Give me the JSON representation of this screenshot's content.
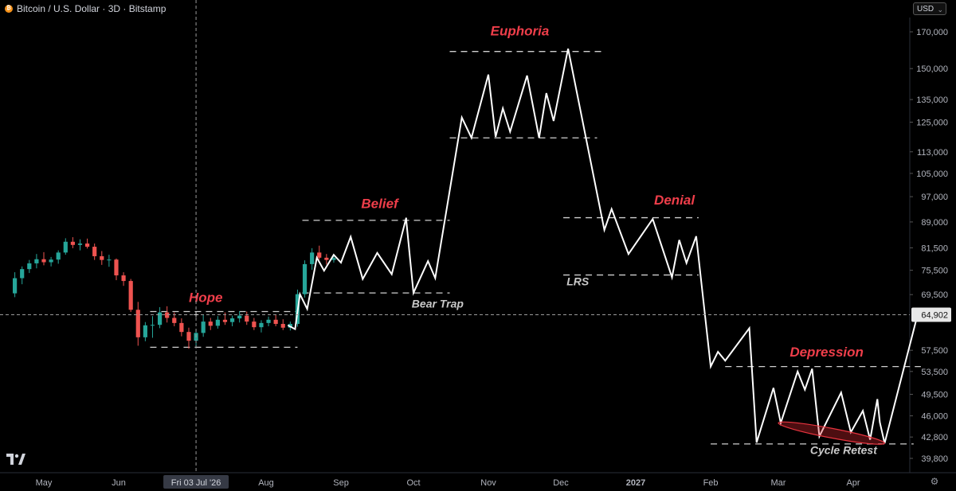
{
  "header": {
    "symbol_title": "Bitcoin / U.S. Dollar · 3D · Bitstamp",
    "currency": "USD",
    "logo_glyph": "₿"
  },
  "crosshair": {
    "date_label": "Fri 03 Jul '26",
    "price_label": "64,902"
  },
  "colors": {
    "background": "#000000",
    "up": "#26a69a",
    "down": "#ef5350",
    "path": "#ffffff",
    "phase_label": "#ef3e4a",
    "secondary_label": "#c8c8c8"
  },
  "chart_data": {
    "type": "line",
    "title": "",
    "y_scale": "log",
    "ylim": [
      38000,
      180000
    ],
    "x_range": [
      "2026-04-18",
      "2027-04-30"
    ],
    "x_ticks": [
      {
        "date": "2026-05-01",
        "label": "May"
      },
      {
        "date": "2026-06-01",
        "label": "Jun"
      },
      {
        "date": "2026-08-01",
        "label": "Aug"
      },
      {
        "date": "2026-09-01",
        "label": "Sep"
      },
      {
        "date": "2026-10-01",
        "label": "Oct"
      },
      {
        "date": "2026-11-01",
        "label": "Nov"
      },
      {
        "date": "2026-12-01",
        "label": "Dec"
      },
      {
        "date": "2027-01-01",
        "label": "2027"
      },
      {
        "date": "2027-02-01",
        "label": "Feb"
      },
      {
        "date": "2027-03-01",
        "label": "Mar"
      },
      {
        "date": "2027-04-01",
        "label": "Apr"
      }
    ],
    "y_ticks": [
      "170,000",
      "150,000",
      "135,000",
      "125,000",
      "113,000",
      "105,000",
      "97,000",
      "89,000",
      "81,500",
      "75,500",
      "69,500",
      "57,500",
      "53,500",
      "49,500",
      "46,000",
      "42,800",
      "39,800"
    ],
    "candles": [
      {
        "date": "2026-04-19",
        "open": 69800,
        "high": 75000,
        "low": 68900,
        "close": 73500
      },
      {
        "date": "2026-04-22",
        "open": 73500,
        "high": 76500,
        "low": 72000,
        "close": 75800
      },
      {
        "date": "2026-04-25",
        "open": 75800,
        "high": 78200,
        "low": 74800,
        "close": 77300
      },
      {
        "date": "2026-04-28",
        "open": 77300,
        "high": 79800,
        "low": 76000,
        "close": 78400
      },
      {
        "date": "2026-05-01",
        "open": 78400,
        "high": 80300,
        "low": 76800,
        "close": 77600
      },
      {
        "date": "2026-05-04",
        "open": 77600,
        "high": 79000,
        "low": 76500,
        "close": 78300
      },
      {
        "date": "2026-05-07",
        "open": 78300,
        "high": 80800,
        "low": 77200,
        "close": 80200
      },
      {
        "date": "2026-05-10",
        "open": 80200,
        "high": 84200,
        "low": 79600,
        "close": 83200
      },
      {
        "date": "2026-05-13",
        "open": 83200,
        "high": 84500,
        "low": 81400,
        "close": 82300
      },
      {
        "date": "2026-05-16",
        "open": 82300,
        "high": 83900,
        "low": 80800,
        "close": 82700
      },
      {
        "date": "2026-05-19",
        "open": 82700,
        "high": 84100,
        "low": 81300,
        "close": 81800
      },
      {
        "date": "2026-05-22",
        "open": 81800,
        "high": 82700,
        "low": 78200,
        "close": 79200
      },
      {
        "date": "2026-05-25",
        "open": 79200,
        "high": 80600,
        "low": 76900,
        "close": 78200
      },
      {
        "date": "2026-05-28",
        "open": 78200,
        "high": 79600,
        "low": 76400,
        "close": 78300
      },
      {
        "date": "2026-05-31",
        "open": 78300,
        "high": 78600,
        "low": 73000,
        "close": 74200
      },
      {
        "date": "2026-06-03",
        "open": 74200,
        "high": 75000,
        "low": 71600,
        "close": 72800
      },
      {
        "date": "2026-06-06",
        "open": 72800,
        "high": 73300,
        "low": 65500,
        "close": 66000
      },
      {
        "date": "2026-06-09",
        "open": 66000,
        "high": 67800,
        "low": 58400,
        "close": 60100
      },
      {
        "date": "2026-06-12",
        "open": 60100,
        "high": 63300,
        "low": 59300,
        "close": 62600
      },
      {
        "date": "2026-06-15",
        "open": 62600,
        "high": 64600,
        "low": 60000,
        "close": 62700
      },
      {
        "date": "2026-06-18",
        "open": 62700,
        "high": 66600,
        "low": 62000,
        "close": 65400
      },
      {
        "date": "2026-06-21",
        "open": 65400,
        "high": 66800,
        "low": 63200,
        "close": 64200
      },
      {
        "date": "2026-06-24",
        "open": 64200,
        "high": 65400,
        "low": 62400,
        "close": 63100
      },
      {
        "date": "2026-06-27",
        "open": 63100,
        "high": 64100,
        "low": 60300,
        "close": 61200
      },
      {
        "date": "2026-06-30",
        "open": 61200,
        "high": 62100,
        "low": 57800,
        "close": 59400
      },
      {
        "date": "2026-07-03",
        "open": 59400,
        "high": 61700,
        "low": 58100,
        "close": 61000
      },
      {
        "date": "2026-07-06",
        "open": 61000,
        "high": 64900,
        "low": 60200,
        "close": 63400
      },
      {
        "date": "2026-07-09",
        "open": 63400,
        "high": 64200,
        "low": 61600,
        "close": 62500
      },
      {
        "date": "2026-07-12",
        "open": 62500,
        "high": 64600,
        "low": 61900,
        "close": 63800
      },
      {
        "date": "2026-07-15",
        "open": 63800,
        "high": 65400,
        "low": 62700,
        "close": 63300
      },
      {
        "date": "2026-07-18",
        "open": 63300,
        "high": 64700,
        "low": 62400,
        "close": 64100
      },
      {
        "date": "2026-07-21",
        "open": 64100,
        "high": 65700,
        "low": 63200,
        "close": 64700
      },
      {
        "date": "2026-07-24",
        "open": 64700,
        "high": 65600,
        "low": 62700,
        "close": 63400
      },
      {
        "date": "2026-07-27",
        "open": 63400,
        "high": 64200,
        "low": 61600,
        "close": 62200
      },
      {
        "date": "2026-07-30",
        "open": 62200,
        "high": 63700,
        "low": 61100,
        "close": 63100
      },
      {
        "date": "2026-08-02",
        "open": 63100,
        "high": 64500,
        "low": 62400,
        "close": 63800
      },
      {
        "date": "2026-08-05",
        "open": 63800,
        "high": 64900,
        "low": 62400,
        "close": 62900
      },
      {
        "date": "2026-08-08",
        "open": 62900,
        "high": 63900,
        "low": 61600,
        "close": 62100
      },
      {
        "date": "2026-08-11",
        "open": 62100,
        "high": 63400,
        "low": 61500,
        "close": 62900
      },
      {
        "date": "2026-08-14",
        "open": 62900,
        "high": 70700,
        "low": 62300,
        "close": 69600
      },
      {
        "date": "2026-08-17",
        "open": 69600,
        "high": 78100,
        "low": 68800,
        "close": 77100
      },
      {
        "date": "2026-08-20",
        "open": 77100,
        "high": 81400,
        "low": 75600,
        "close": 80200
      },
      {
        "date": "2026-08-23",
        "open": 80200,
        "high": 82100,
        "low": 78300,
        "close": 78800
      },
      {
        "date": "2026-08-26",
        "open": 78800,
        "high": 79800,
        "low": 77000,
        "close": 78200
      },
      {
        "date": "2026-08-29",
        "open": 78200,
        "high": 79300,
        "low": 77500,
        "close": 78700
      }
    ],
    "projection": [
      {
        "x": "2026-08-10",
        "y": 62600
      },
      {
        "x": "2026-08-13",
        "y": 61800
      },
      {
        "x": "2026-08-15",
        "y": 69600
      },
      {
        "x": "2026-08-18",
        "y": 66200
      },
      {
        "x": "2026-08-22",
        "y": 78800
      },
      {
        "x": "2026-08-25",
        "y": 75400
      },
      {
        "x": "2026-08-29",
        "y": 79600
      },
      {
        "x": "2026-09-01",
        "y": 77500
      },
      {
        "x": "2026-09-05",
        "y": 84600
      },
      {
        "x": "2026-09-10",
        "y": 73300
      },
      {
        "x": "2026-09-16",
        "y": 80100
      },
      {
        "x": "2026-09-22",
        "y": 74500
      },
      {
        "x": "2026-09-28",
        "y": 90300
      },
      {
        "x": "2026-09-28",
        "y": 89600
      },
      {
        "x": "2026-10-01",
        "y": 69900
      },
      {
        "x": "2026-10-07",
        "y": 77900
      },
      {
        "x": "2026-10-10",
        "y": 73500
      },
      {
        "x": "2026-10-21",
        "y": 127000
      },
      {
        "x": "2026-10-25",
        "y": 118500
      },
      {
        "x": "2026-11-01",
        "y": 147000
      },
      {
        "x": "2026-11-04",
        "y": 118900
      },
      {
        "x": "2026-11-07",
        "y": 131000
      },
      {
        "x": "2026-11-10",
        "y": 121000
      },
      {
        "x": "2026-11-17",
        "y": 146500
      },
      {
        "x": "2026-11-22",
        "y": 118500
      },
      {
        "x": "2026-11-25",
        "y": 138000
      },
      {
        "x": "2026-11-28",
        "y": 125500
      },
      {
        "x": "2026-12-04",
        "y": 160500
      },
      {
        "x": "2026-12-19",
        "y": 86600
      },
      {
        "x": "2026-12-22",
        "y": 93000
      },
      {
        "x": "2026-12-29",
        "y": 79800
      },
      {
        "x": "2027-01-08",
        "y": 89900
      },
      {
        "x": "2027-01-16",
        "y": 73700
      },
      {
        "x": "2027-01-19",
        "y": 83700
      },
      {
        "x": "2027-01-22",
        "y": 77400
      },
      {
        "x": "2027-01-26",
        "y": 84800
      },
      {
        "x": "2027-02-01",
        "y": 54400
      },
      {
        "x": "2027-02-04",
        "y": 57200
      },
      {
        "x": "2027-02-07",
        "y": 55500
      },
      {
        "x": "2027-02-17",
        "y": 62000
      },
      {
        "x": "2027-02-20",
        "y": 42000
      },
      {
        "x": "2027-02-27",
        "y": 50600
      },
      {
        "x": "2027-03-02",
        "y": 44900
      },
      {
        "x": "2027-03-09",
        "y": 53500
      },
      {
        "x": "2027-03-12",
        "y": 50300
      },
      {
        "x": "2027-03-15",
        "y": 54000
      },
      {
        "x": "2027-03-18",
        "y": 42900
      },
      {
        "x": "2027-03-27",
        "y": 49800
      },
      {
        "x": "2027-03-31",
        "y": 43500
      },
      {
        "x": "2027-04-05",
        "y": 46800
      },
      {
        "x": "2027-04-08",
        "y": 42400
      },
      {
        "x": "2027-04-11",
        "y": 48700
      },
      {
        "x": "2027-04-12",
        "y": 45000
      },
      {
        "x": "2027-04-14",
        "y": 41900
      },
      {
        "x": "2027-04-28",
        "y": 65700
      },
      {
        "x": "2027-04-30",
        "y": 64900
      }
    ],
    "levels": [
      {
        "y": 159000,
        "x0": "2026-10-16",
        "x1": "2026-12-19"
      },
      {
        "y": 118500,
        "x0": "2026-10-16",
        "x1": "2026-12-16"
      },
      {
        "y": 89500,
        "x0": "2026-08-16",
        "x1": "2026-10-16"
      },
      {
        "y": 69900,
        "x0": "2026-08-16",
        "x1": "2026-10-16"
      },
      {
        "y": 65600,
        "x0": "2026-06-14",
        "x1": "2026-08-14"
      },
      {
        "y": 58100,
        "x0": "2026-06-14",
        "x1": "2026-08-14"
      },
      {
        "y": 90300,
        "x0": "2026-12-02",
        "x1": "2027-01-27"
      },
      {
        "y": 74300,
        "x0": "2026-12-02",
        "x1": "2027-01-27"
      },
      {
        "y": 54400,
        "x0": "2027-02-07",
        "x1": "2027-04-29"
      },
      {
        "y": 41800,
        "x0": "2027-02-01",
        "x1": "2027-04-26"
      }
    ],
    "annotations": [
      {
        "text": "Euphoria",
        "x": "2026-11-14",
        "y": 168000,
        "kind": "phase"
      },
      {
        "text": "Belief",
        "x": "2026-09-17",
        "y": 93300,
        "kind": "phase"
      },
      {
        "text": "Denial",
        "x": "2027-01-17",
        "y": 94500,
        "kind": "phase"
      },
      {
        "text": "Hope",
        "x": "2026-07-07",
        "y": 67800,
        "kind": "phase"
      },
      {
        "text": "Depression",
        "x": "2027-03-21",
        "y": 56300,
        "kind": "phase"
      },
      {
        "text": "Bear Trap",
        "x": "2026-10-11",
        "y": 66500,
        "kind": "note"
      },
      {
        "text": "LRS",
        "x": "2026-12-08",
        "y": 71700,
        "kind": "note"
      },
      {
        "text": "Cycle Retest",
        "x": "2027-03-28",
        "y": 40400,
        "kind": "note"
      }
    ],
    "highlight_ellipse": {
      "x0": "2027-03-01",
      "y0": 44900,
      "x1": "2027-04-14",
      "y1": 41900
    }
  }
}
